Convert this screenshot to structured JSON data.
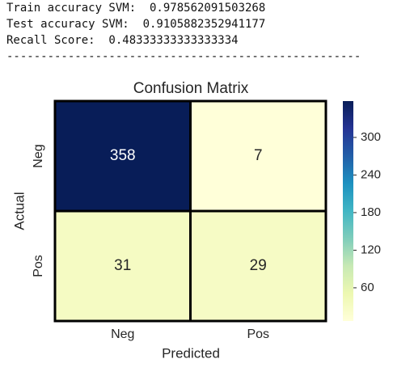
{
  "console": {
    "lines": [
      "Train accuracy SVM:  0.978562091503268",
      "Test accuracy SVM:  0.9105882352941177",
      "Recall Score:  0.48333333333333334"
    ],
    "separator": "----------------------------------------------------"
  },
  "chart_data": {
    "type": "heatmap",
    "title": "Confusion Matrix",
    "xlabel": "Predicted",
    "ylabel": "Actual",
    "x_categories": [
      "Neg",
      "Pos"
    ],
    "y_categories": [
      "Neg",
      "Pos"
    ],
    "values": [
      [
        358,
        7
      ],
      [
        31,
        29
      ]
    ],
    "clim": [
      7,
      358
    ],
    "cticks": [
      60,
      120,
      180,
      240,
      300
    ],
    "cmap": [
      "#ffffd9",
      "#edf8b1",
      "#c7e9b4",
      "#7fcdbb",
      "#41b6c4",
      "#1d91c0",
      "#225ea8",
      "#253494",
      "#081d58"
    ]
  }
}
